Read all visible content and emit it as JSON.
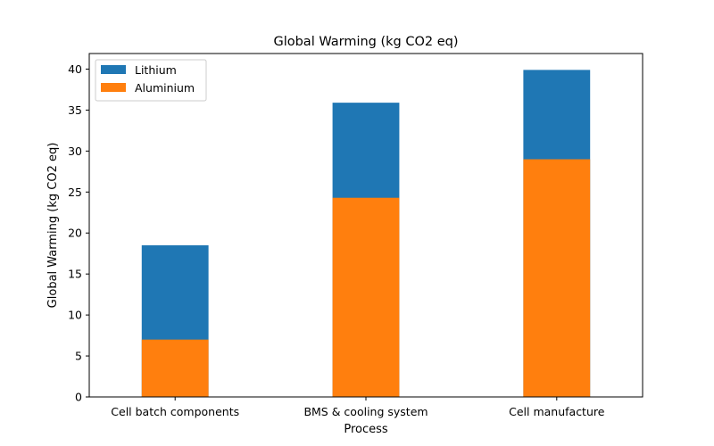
{
  "chart_data": {
    "type": "bar",
    "stacked": false,
    "overlay": true,
    "title": "Global Warming (kg CO2 eq)",
    "xlabel": "Process",
    "ylabel": "Global Warming (kg CO2 eq)",
    "categories": [
      "Cell batch components",
      "BMS & cooling system",
      "Cell manufacture"
    ],
    "series": [
      {
        "name": "Lithium",
        "values": [
          18.5,
          35.9,
          39.9
        ],
        "color": "#1f77b4"
      },
      {
        "name": "Aluminium",
        "values": [
          7.0,
          24.3,
          29.0
        ],
        "color": "#ff7f0e"
      }
    ],
    "ylim": [
      0,
      41.9
    ],
    "yticks": [
      0,
      5,
      10,
      15,
      20,
      25,
      30,
      35,
      40
    ],
    "grid": false,
    "legend_position": "top-left"
  }
}
